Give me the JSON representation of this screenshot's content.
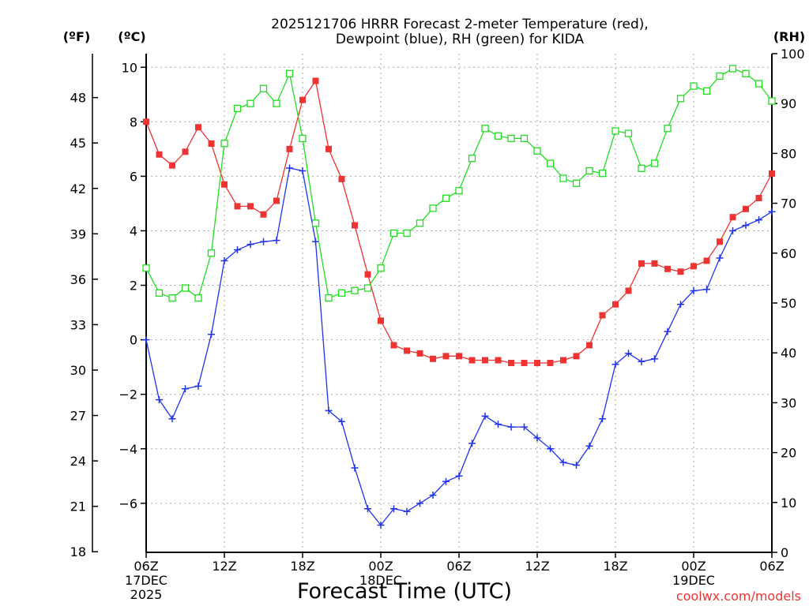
{
  "chart_data": {
    "type": "line",
    "title_line1": "2025121706 HRRR Forecast 2-meter Temperature (red),",
    "title_line2": "Dewpoint (blue), RH (green) for KIDA",
    "xlabel": "Forecast Time (UTC)",
    "credit": "coolwx.com/models",
    "units_f": "(ºF)",
    "units_c": "(ºC)",
    "units_rh": "(RH)",
    "x_start_hour": 6,
    "x_end_hour": 54,
    "celsius_range": [
      -7.8,
      10.5
    ],
    "rh_range": [
      0,
      100
    ],
    "x_ticks": [
      {
        "hour": 6,
        "label": "06Z"
      },
      {
        "hour": 12,
        "label": "12Z"
      },
      {
        "hour": 18,
        "label": "18Z"
      },
      {
        "hour": 24,
        "label": "00Z"
      },
      {
        "hour": 30,
        "label": "06Z"
      },
      {
        "hour": 36,
        "label": "12Z"
      },
      {
        "hour": 42,
        "label": "18Z"
      },
      {
        "hour": 48,
        "label": "00Z"
      },
      {
        "hour": 54,
        "label": "06Z"
      }
    ],
    "date_labels": [
      {
        "hour": 6,
        "line1": "17DEC",
        "line2": "2025"
      },
      {
        "hour": 24,
        "line1": "18DEC",
        "line2": ""
      },
      {
        "hour": 48,
        "line1": "19DEC",
        "line2": ""
      }
    ],
    "celsius_ticks": [
      10,
      8,
      6,
      4,
      2,
      0,
      -2,
      -4,
      -6
    ],
    "celsius_tick_labels": [
      "10",
      "8",
      "6",
      "4",
      "2",
      "0",
      "−2",
      "−4",
      "−6"
    ],
    "fahrenheit_ticks": [
      48,
      45,
      42,
      39,
      36,
      33,
      30,
      27,
      24,
      21,
      18
    ],
    "rh_ticks": [
      0,
      10,
      20,
      30,
      40,
      50,
      60,
      70,
      80,
      90,
      100
    ],
    "series": [
      {
        "name": "2-meter Temperature",
        "axis": "celsius",
        "color": "#ee3333",
        "marker": "filled-square",
        "values": [
          8.0,
          6.8,
          6.4,
          6.9,
          7.8,
          7.2,
          5.7,
          4.9,
          4.9,
          4.6,
          5.1,
          7.0,
          8.8,
          9.5,
          7.0,
          5.9,
          4.2,
          2.4,
          0.7,
          -0.2,
          -0.4,
          -0.5,
          -0.7,
          -0.6,
          -0.6,
          -0.75,
          -0.75,
          -0.75,
          -0.85,
          -0.85,
          -0.85,
          -0.85,
          -0.75,
          -0.6,
          -0.2,
          0.9,
          1.3,
          1.8,
          2.8,
          2.8,
          2.6,
          2.5,
          2.7,
          2.9,
          3.6,
          4.5,
          4.8,
          5.2,
          6.1
        ]
      },
      {
        "name": "Dewpoint",
        "axis": "celsius",
        "color": "#2233ee",
        "marker": "plus",
        "values": [
          0.0,
          -2.2,
          -2.9,
          -1.8,
          -1.7,
          0.2,
          2.9,
          3.3,
          3.5,
          3.6,
          3.65,
          6.3,
          6.2,
          3.6,
          -2.6,
          -3.0,
          -4.7,
          -6.2,
          -6.8,
          -6.2,
          -6.3,
          -6.0,
          -5.7,
          -5.2,
          -5.0,
          -3.8,
          -2.8,
          -3.1,
          -3.2,
          -3.2,
          -3.6,
          -4.0,
          -4.5,
          -4.6,
          -3.9,
          -2.9,
          -0.9,
          -0.5,
          -0.8,
          -0.7,
          0.3,
          1.3,
          1.8,
          1.85,
          3.0,
          4.0,
          4.2,
          4.4,
          4.7
        ]
      },
      {
        "name": "Relative Humidity",
        "axis": "rh",
        "color": "#22dd22",
        "marker": "open-square",
        "values": [
          57,
          52,
          51,
          53,
          51,
          60,
          82,
          89,
          90,
          93,
          90,
          96,
          83,
          66,
          51,
          52,
          52.5,
          53,
          57,
          64,
          64,
          66,
          69,
          71,
          72.5,
          79,
          85,
          83.5,
          83,
          83,
          80.5,
          78,
          75,
          74,
          76.5,
          76,
          84.5,
          84,
          77,
          78,
          85,
          91,
          93.5,
          92.5,
          95.5,
          97,
          96,
          94,
          90.5
        ]
      }
    ]
  }
}
